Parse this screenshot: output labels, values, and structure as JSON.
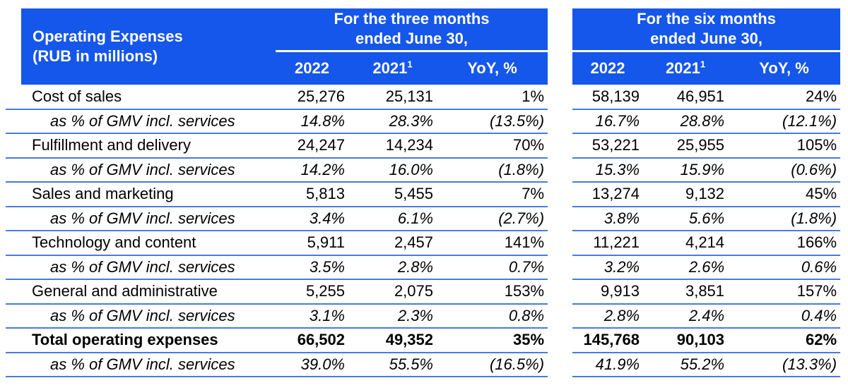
{
  "colors": {
    "header_bg": "#1556EB",
    "header_text": "#ffffff",
    "divider_line": "#4a7bd9",
    "body_text": "#000000",
    "background": "#ffffff"
  },
  "table": {
    "corner_label": "Operating Expenses\n(RUB in millions)",
    "groups": [
      {
        "title": "For the three months\nended June 30,"
      },
      {
        "title": "For the six months\nended June 30,"
      }
    ],
    "year_cols": [
      {
        "label": "2022",
        "sup": ""
      },
      {
        "label": "2021",
        "sup": "1"
      },
      {
        "label": "YoY, %",
        "sup": ""
      }
    ],
    "rows": [
      {
        "label": "Cost of sales",
        "style": "normal",
        "three": [
          "25,276",
          "25,131",
          "1%"
        ],
        "six": [
          "58,139",
          "46,951",
          "24%"
        ]
      },
      {
        "label": "as % of GMV incl. services",
        "style": "italic",
        "three": [
          "14.8%",
          "28.3%",
          "(13.5%)"
        ],
        "six": [
          "16.7%",
          "28.8%",
          "(12.1%)"
        ]
      },
      {
        "label": "Fulfillment and delivery",
        "style": "normal",
        "three": [
          "24,247",
          "14,234",
          "70%"
        ],
        "six": [
          "53,221",
          "25,955",
          "105%"
        ]
      },
      {
        "label": "as % of GMV incl. services",
        "style": "italic",
        "three": [
          "14.2%",
          "16.0%",
          "(1.8%)"
        ],
        "six": [
          "15.3%",
          "15.9%",
          "(0.6%)"
        ]
      },
      {
        "label": "Sales and marketing",
        "style": "normal",
        "three": [
          "5,813",
          "5,455",
          "7%"
        ],
        "six": [
          "13,274",
          "9,132",
          "45%"
        ]
      },
      {
        "label": "as % of GMV incl. services",
        "style": "italic",
        "three": [
          "3.4%",
          "6.1%",
          "(2.7%)"
        ],
        "six": [
          "3.8%",
          "5.6%",
          "(1.8%)"
        ]
      },
      {
        "label": "Technology and content",
        "style": "normal",
        "three": [
          "5,911",
          "2,457",
          "141%"
        ],
        "six": [
          "11,221",
          "4,214",
          "166%"
        ]
      },
      {
        "label": "as % of GMV incl. services",
        "style": "italic",
        "three": [
          "3.5%",
          "2.8%",
          "0.7%"
        ],
        "six": [
          "3.2%",
          "2.6%",
          "0.6%"
        ]
      },
      {
        "label": "General and administrative",
        "style": "normal",
        "three": [
          "5,255",
          "2,075",
          "153%"
        ],
        "six": [
          "9,913",
          "3,851",
          "157%"
        ]
      },
      {
        "label": "as % of GMV incl. services",
        "style": "italic",
        "three": [
          "3.1%",
          "2.3%",
          "0.8%"
        ],
        "six": [
          "2.8%",
          "2.4%",
          "0.4%"
        ]
      },
      {
        "label": "Total operating expenses",
        "style": "bold",
        "three": [
          "66,502",
          "49,352",
          "35%"
        ],
        "six": [
          "145,768",
          "90,103",
          "62%"
        ]
      },
      {
        "label": "as % of GMV incl. services",
        "style": "italic",
        "three": [
          "39.0%",
          "55.5%",
          "(16.5%)"
        ],
        "six": [
          "41.9%",
          "55.2%",
          "(13.3%)"
        ]
      }
    ]
  }
}
